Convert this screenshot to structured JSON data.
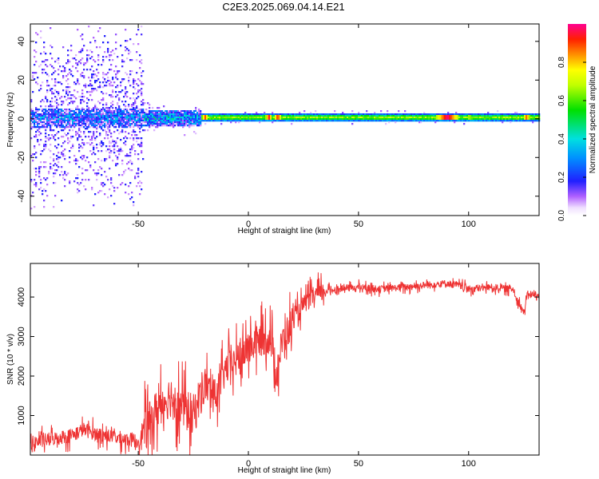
{
  "title": "C2E3.2025.069.04.14.E21",
  "chart_data": [
    {
      "type": "heatmap",
      "name": "spectrogram",
      "xlabel": "Height of straight line (km)",
      "ylabel": "Frequency (Hz)",
      "xlim": [
        -99,
        132
      ],
      "ylim": [
        -50,
        49
      ],
      "xticks": [
        -50,
        0,
        50,
        100
      ],
      "xtick_labels": [
        "-50",
        "0",
        "50",
        "100"
      ],
      "yticks": [
        -40,
        -20,
        0,
        20,
        40
      ],
      "ytick_labels": [
        "-40",
        "-20",
        "0",
        "20",
        "40"
      ],
      "description_bands": [
        {
          "x_range": [
            -99,
            -48
          ],
          "freq_halfwidth": 5,
          "noise_halfwidth": 49,
          "level": 0.25
        },
        {
          "x_range": [
            -48,
            -22
          ],
          "freq_halfwidth": 4,
          "noise_halfwidth": 10,
          "level": 0.35
        },
        {
          "x_range": [
            -22,
            132
          ],
          "freq_halfwidth": 2,
          "noise_halfwidth": 4,
          "level": 0.55
        }
      ],
      "hotspots": [
        {
          "x": -20,
          "level": 0.9
        },
        {
          "x": 9,
          "level": 0.95
        },
        {
          "x": 13,
          "level": 0.95
        },
        {
          "x": 90,
          "level": 1.0
        },
        {
          "x": 100,
          "level": 0.7
        },
        {
          "x": 126,
          "level": 0.9
        }
      ],
      "colorbar": {
        "label": "Normalized spectral amplitude",
        "range": [
          0.0,
          1.0
        ],
        "ticks": [
          0.0,
          0.2,
          0.4,
          0.6,
          0.8
        ],
        "tick_labels": [
          "0.0",
          "0.2",
          "0.4",
          "0.6",
          "0.8"
        ],
        "colormap": "rainbow-white"
      }
    },
    {
      "type": "line",
      "name": "snr",
      "xlabel": "Height of straight line (km)",
      "ylabel": "SNR (10 * v/v)",
      "xlim": [
        -99,
        132
      ],
      "ylim": [
        0,
        4850
      ],
      "xticks": [
        -50,
        0,
        50,
        100
      ],
      "xtick_labels": [
        "-50",
        "0",
        "50",
        "100"
      ],
      "yticks": [
        1000,
        2000,
        3000,
        4000
      ],
      "ytick_labels": [
        "1000",
        "2000",
        "3000",
        "4000"
      ],
      "color": "#ee3333",
      "series": [
        {
          "name": "SNR",
          "x": [
            -99,
            -90,
            -80,
            -75,
            -70,
            -65,
            -60,
            -55,
            -50,
            -45,
            -40,
            -35,
            -30,
            -25,
            -20,
            -15,
            -10,
            -5,
            0,
            5,
            10,
            13,
            15,
            20,
            25,
            30,
            35,
            40,
            50,
            60,
            70,
            80,
            90,
            95,
            100,
            110,
            120,
            125,
            127,
            132
          ],
          "y": [
            300,
            400,
            500,
            650,
            550,
            500,
            450,
            400,
            350,
            800,
            1300,
            1500,
            1200,
            1000,
            1800,
            1500,
            2200,
            2400,
            2700,
            2900,
            3000,
            2000,
            2800,
            3400,
            3800,
            4050,
            4150,
            4200,
            4250,
            4200,
            4250,
            4300,
            4350,
            4300,
            4200,
            4250,
            4200,
            3600,
            4100,
            4000
          ]
        }
      ]
    }
  ]
}
